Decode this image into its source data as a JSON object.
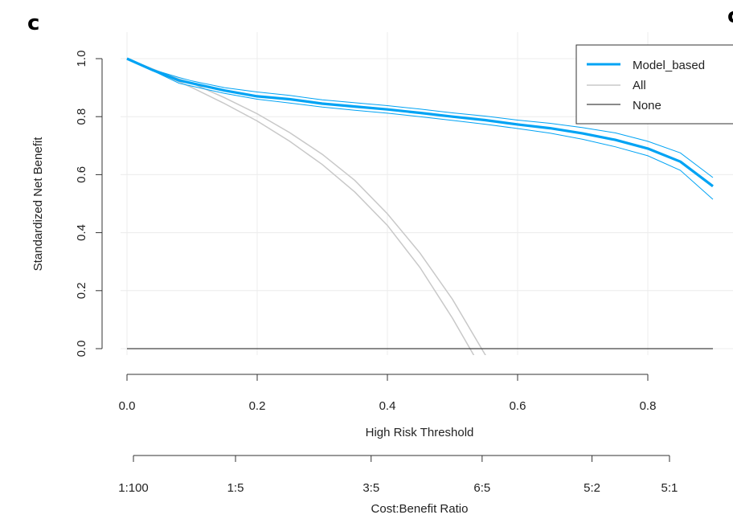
{
  "panel_label": "c",
  "panel_label_right": "c",
  "chart_data": {
    "type": "line",
    "title": "",
    "xlabel": "High Risk Threshold",
    "ylabel": "Standardized Net Benefit",
    "secondary_xlabel": "Cost:Benefit Ratio",
    "xlim": [
      0,
      0.9
    ],
    "ylim": [
      0,
      1.0
    ],
    "x_ticks": [
      "0.0",
      "0.2",
      "0.4",
      "0.6",
      "0.8"
    ],
    "y_ticks": [
      "0.0",
      "0.2",
      "0.4",
      "0.6",
      "0.8",
      "1.0"
    ],
    "secondary_ticks": [
      {
        "label": "1:100",
        "threshold": 0.0099
      },
      {
        "label": "1:5",
        "threshold": 0.1667
      },
      {
        "label": "3:5",
        "threshold": 0.375
      },
      {
        "label": "6:5",
        "threshold": 0.5455
      },
      {
        "label": "5:2",
        "threshold": 0.7143
      },
      {
        "label": "5:1",
        "threshold": 0.8333
      }
    ],
    "grid": true,
    "legend_position": "top-right",
    "colors": {
      "model": "#00a3f4",
      "all": "#c8c8c8",
      "none": "#444444"
    },
    "series": [
      {
        "name": "Model_based",
        "style": "bold",
        "x": [
          0.0,
          0.04,
          0.08,
          0.1,
          0.15,
          0.2,
          0.25,
          0.3,
          0.35,
          0.4,
          0.45,
          0.5,
          0.55,
          0.6,
          0.65,
          0.7,
          0.75,
          0.8,
          0.85,
          0.9
        ],
        "y": [
          1.0,
          0.96,
          0.925,
          0.915,
          0.89,
          0.87,
          0.86,
          0.845,
          0.835,
          0.825,
          0.813,
          0.8,
          0.788,
          0.773,
          0.76,
          0.742,
          0.72,
          0.69,
          0.645,
          0.56
        ],
        "upper": [
          1.0,
          0.962,
          0.935,
          0.923,
          0.9,
          0.885,
          0.873,
          0.858,
          0.848,
          0.838,
          0.826,
          0.813,
          0.802,
          0.788,
          0.777,
          0.762,
          0.744,
          0.715,
          0.675,
          0.59
        ],
        "lower": [
          1.0,
          0.958,
          0.915,
          0.905,
          0.88,
          0.86,
          0.847,
          0.833,
          0.822,
          0.812,
          0.8,
          0.787,
          0.774,
          0.759,
          0.743,
          0.722,
          0.696,
          0.665,
          0.615,
          0.515
        ]
      },
      {
        "name": "All",
        "style": "band",
        "x": [
          0.0,
          0.05,
          0.08,
          0.1,
          0.15,
          0.2,
          0.25,
          0.3,
          0.35,
          0.4,
          0.45,
          0.5,
          0.55,
          0.57
        ],
        "upper": [
          1.0,
          0.955,
          0.93,
          0.915,
          0.865,
          0.81,
          0.745,
          0.67,
          0.58,
          0.465,
          0.33,
          0.17,
          -0.02,
          -0.09
        ],
        "lower": [
          1.0,
          0.95,
          0.92,
          0.9,
          0.845,
          0.785,
          0.715,
          0.635,
          0.54,
          0.425,
          0.28,
          0.105,
          -0.09,
          -0.15
        ]
      },
      {
        "name": "None",
        "style": "thin",
        "x": [
          0.0,
          0.9
        ],
        "y": [
          0.0,
          0.0
        ]
      }
    ]
  }
}
